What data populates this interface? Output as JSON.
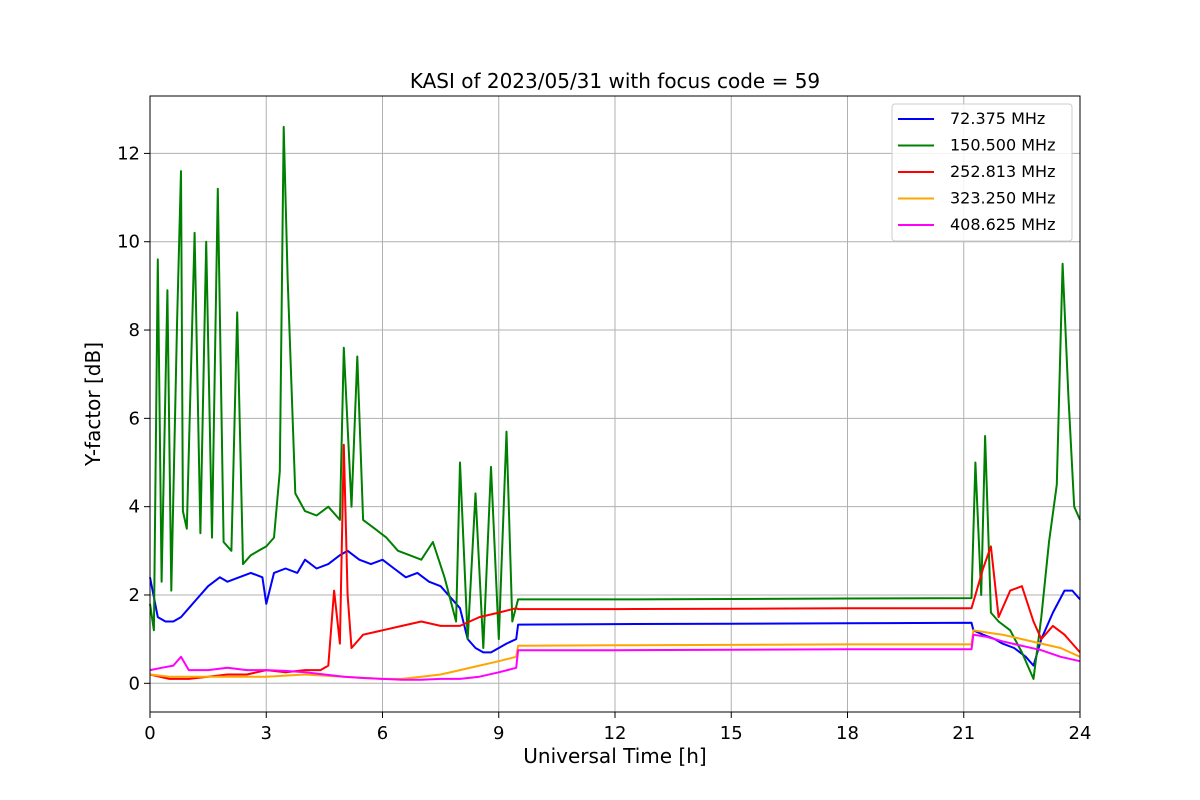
{
  "chart_data": {
    "type": "line",
    "title": "KASI of 2023/05/31 with focus code = 59",
    "xlabel": "Universal Time [h]",
    "ylabel": "Y-factor [dB]",
    "xlim": [
      0,
      24
    ],
    "ylim": [
      -0.65,
      13.3
    ],
    "xticks": [
      0,
      3,
      6,
      9,
      12,
      15,
      18,
      21,
      24
    ],
    "yticks": [
      0,
      2,
      4,
      6,
      8,
      10,
      12
    ],
    "grid": true,
    "legend_position": "top-right",
    "series": [
      {
        "name": " 72.375 MHz",
        "color": "#0000ff",
        "x": [
          0,
          0.2,
          0.4,
          0.6,
          0.8,
          1.0,
          1.2,
          1.5,
          1.8,
          2.0,
          2.3,
          2.6,
          2.9,
          3.0,
          3.2,
          3.5,
          3.8,
          4.0,
          4.3,
          4.6,
          4.9,
          5.1,
          5.4,
          5.7,
          6.0,
          6.3,
          6.6,
          6.9,
          7.2,
          7.5,
          7.8,
          8.0,
          8.2,
          8.4,
          8.6,
          8.8,
          9.0,
          9.2,
          9.45,
          9.5,
          12,
          15,
          18,
          21.2,
          21.25,
          21.5,
          21.8,
          22.0,
          22.3,
          22.6,
          22.8,
          23.0,
          23.3,
          23.6,
          23.8,
          24.0
        ],
        "y": [
          2.4,
          1.5,
          1.4,
          1.4,
          1.5,
          1.7,
          1.9,
          2.2,
          2.4,
          2.3,
          2.4,
          2.5,
          2.4,
          1.8,
          2.5,
          2.6,
          2.5,
          2.8,
          2.6,
          2.7,
          2.9,
          3.0,
          2.8,
          2.7,
          2.8,
          2.6,
          2.4,
          2.5,
          2.3,
          2.2,
          1.9,
          1.7,
          1.0,
          0.8,
          0.7,
          0.7,
          0.8,
          0.9,
          1.0,
          1.33,
          1.34,
          1.35,
          1.36,
          1.37,
          1.2,
          1.1,
          1.0,
          0.9,
          0.8,
          0.6,
          0.4,
          1.0,
          1.6,
          2.1,
          2.1,
          1.9
        ]
      },
      {
        "name": "150.500 MHz",
        "color": "#008000",
        "x": [
          0,
          0.1,
          0.2,
          0.3,
          0.45,
          0.55,
          0.7,
          0.8,
          0.85,
          0.95,
          1.15,
          1.3,
          1.45,
          1.6,
          1.75,
          1.9,
          2.1,
          2.25,
          2.4,
          2.6,
          2.8,
          3.0,
          3.2,
          3.35,
          3.45,
          3.55,
          3.75,
          4.0,
          4.3,
          4.6,
          4.9,
          5.0,
          5.2,
          5.35,
          5.5,
          5.8,
          6.1,
          6.4,
          6.7,
          7.0,
          7.3,
          7.6,
          7.9,
          8.0,
          8.2,
          8.4,
          8.6,
          8.8,
          9.0,
          9.2,
          9.35,
          9.5,
          12,
          15,
          18,
          21.2,
          21.3,
          21.45,
          21.55,
          21.7,
          21.9,
          22.2,
          22.5,
          22.8,
          23.0,
          23.2,
          23.4,
          23.55,
          23.7,
          23.85,
          24.0
        ],
        "y": [
          1.8,
          1.2,
          9.6,
          2.3,
          8.9,
          2.1,
          8.2,
          11.6,
          3.9,
          3.5,
          10.2,
          3.4,
          10.0,
          3.3,
          11.2,
          3.2,
          3.0,
          8.4,
          2.7,
          2.9,
          3.0,
          3.1,
          3.3,
          4.8,
          12.6,
          9.2,
          4.3,
          3.9,
          3.8,
          4.0,
          3.7,
          7.6,
          4.0,
          7.4,
          3.7,
          3.5,
          3.3,
          3.0,
          2.9,
          2.8,
          3.2,
          2.4,
          1.4,
          5.0,
          1.0,
          4.3,
          0.8,
          4.9,
          1.0,
          5.7,
          1.4,
          1.9,
          1.9,
          1.91,
          1.92,
          1.93,
          5.0,
          2.0,
          5.6,
          1.6,
          1.4,
          1.2,
          0.7,
          0.1,
          1.5,
          3.2,
          4.5,
          9.5,
          6.5,
          4.0,
          3.7
        ]
      },
      {
        "name": "252.813 MHz",
        "color": "#ff0000",
        "x": [
          0,
          0.5,
          1.0,
          1.5,
          2.0,
          2.5,
          3.0,
          3.5,
          4.0,
          4.4,
          4.6,
          4.75,
          4.9,
          5.0,
          5.1,
          5.2,
          5.5,
          6.0,
          6.5,
          7.0,
          7.5,
          8.0,
          8.5,
          9.0,
          9.45,
          9.5,
          12,
          15,
          18,
          21.2,
          21.3,
          21.5,
          21.7,
          21.9,
          22.2,
          22.5,
          22.8,
          23.0,
          23.3,
          23.6,
          23.8,
          24.0
        ],
        "y": [
          0.2,
          0.1,
          0.1,
          0.15,
          0.2,
          0.2,
          0.3,
          0.25,
          0.3,
          0.3,
          0.4,
          2.1,
          0.9,
          5.4,
          2.0,
          0.8,
          1.1,
          1.2,
          1.3,
          1.4,
          1.3,
          1.3,
          1.5,
          1.6,
          1.7,
          1.68,
          1.68,
          1.69,
          1.7,
          1.7,
          2.0,
          2.6,
          3.1,
          1.5,
          2.1,
          2.2,
          1.4,
          1.0,
          1.3,
          1.1,
          0.9,
          0.7
        ]
      },
      {
        "name": "323.250 MHz",
        "color": "#ffa500",
        "x": [
          0,
          0.5,
          1.0,
          2.0,
          3.0,
          4.0,
          5.0,
          6.0,
          6.5,
          7.0,
          7.5,
          8.0,
          8.5,
          9.0,
          9.45,
          9.5,
          12,
          15,
          18,
          21.2,
          21.25,
          21.6,
          22.0,
          22.5,
          23.0,
          23.5,
          24.0
        ],
        "y": [
          0.2,
          0.15,
          0.15,
          0.15,
          0.15,
          0.2,
          0.15,
          0.1,
          0.1,
          0.15,
          0.2,
          0.3,
          0.4,
          0.5,
          0.6,
          0.85,
          0.86,
          0.87,
          0.88,
          0.88,
          1.2,
          1.15,
          1.1,
          1.0,
          0.9,
          0.8,
          0.6
        ]
      },
      {
        "name": "408.625 MHz",
        "color": "#ff00ff",
        "x": [
          0,
          0.3,
          0.6,
          0.8,
          1.0,
          1.5,
          2.0,
          2.5,
          3.0,
          3.5,
          4.0,
          4.5,
          5.0,
          5.5,
          6.0,
          6.5,
          7.0,
          7.5,
          8.0,
          8.5,
          9.0,
          9.45,
          9.5,
          12,
          15,
          18,
          21.2,
          21.25,
          21.6,
          22.0,
          22.5,
          23.0,
          23.5,
          24.0
        ],
        "y": [
          0.3,
          0.35,
          0.4,
          0.6,
          0.3,
          0.3,
          0.35,
          0.3,
          0.3,
          0.28,
          0.25,
          0.2,
          0.15,
          0.12,
          0.1,
          0.08,
          0.08,
          0.1,
          0.1,
          0.15,
          0.25,
          0.35,
          0.75,
          0.75,
          0.76,
          0.77,
          0.77,
          1.1,
          1.05,
          0.95,
          0.85,
          0.75,
          0.6,
          0.5
        ]
      }
    ]
  }
}
